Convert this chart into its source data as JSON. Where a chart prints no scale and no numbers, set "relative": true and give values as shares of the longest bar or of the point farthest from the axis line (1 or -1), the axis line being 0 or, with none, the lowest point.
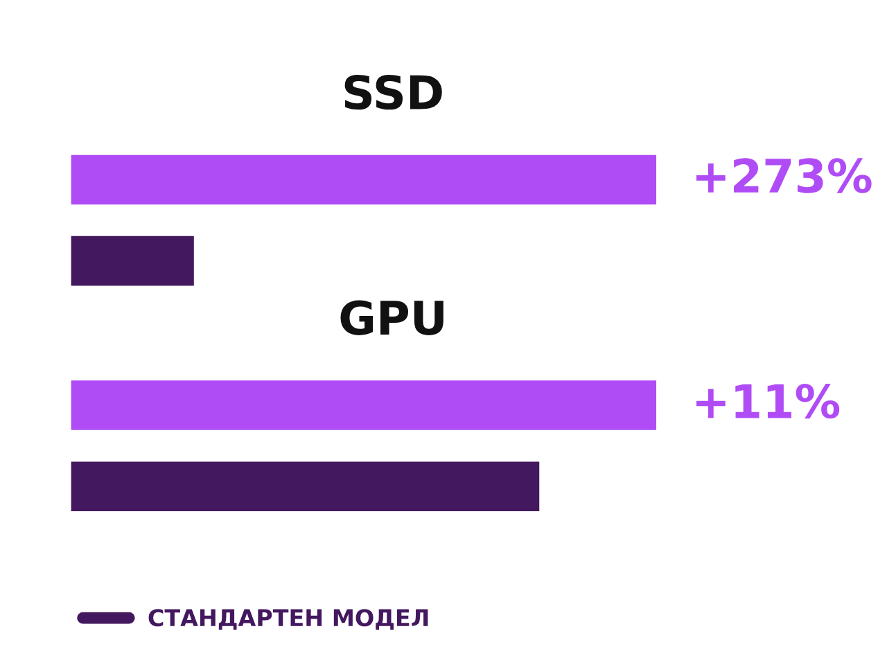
{
  "chart_data": {
    "type": "bar",
    "orientation": "horizontal",
    "relative": true,
    "categories": [
      "SSD",
      "GPU"
    ],
    "series": [
      {
        "color": "#b04cf5",
        "values": [
          1,
          1
        ]
      },
      {
        "name": "СТАНДАРТЕН МОДЕЛ",
        "color": "#44185e",
        "values": [
          0.21,
          0.8
        ]
      }
    ],
    "annotations": [
      "+273%",
      "+11%"
    ],
    "legend": "bottom left"
  }
}
